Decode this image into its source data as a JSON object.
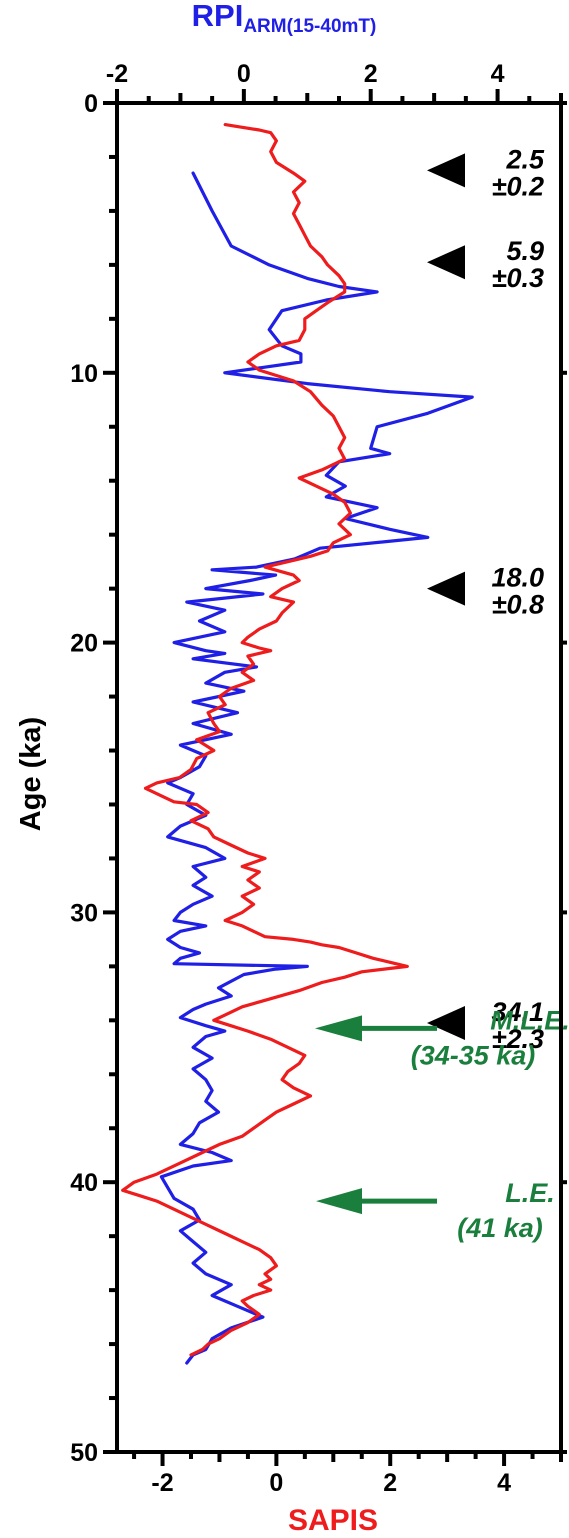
{
  "chart_data": {
    "type": "line",
    "orientation": "vertical-depth",
    "colors": {
      "rpi": "#1f1fe6",
      "sapis": "#ee1c1c",
      "event": "#1a7f3c",
      "axis": "#000000"
    },
    "top_axis": {
      "title_main": "RPI",
      "title_sub": "ARM(15-40mT)",
      "range": [
        -2,
        5
      ],
      "ticks": [
        -2,
        0,
        2,
        4
      ],
      "tick_labels": [
        "-2",
        "0",
        "2",
        "4"
      ]
    },
    "bottom_axis": {
      "title": "SAPIS",
      "range": [
        -2.8,
        5
      ],
      "ticks": [
        -2,
        0,
        2,
        4
      ],
      "tick_labels": [
        "-2",
        "0",
        "2",
        "4"
      ]
    },
    "y_axis": {
      "title": "Age (ka)",
      "range": [
        0,
        50
      ],
      "ticks": [
        0,
        10,
        20,
        30,
        40,
        50
      ],
      "tick_labels": [
        "0",
        "10",
        "20",
        "30",
        "40",
        "50"
      ]
    },
    "series": [
      {
        "name": "RPI",
        "axis": "top",
        "points": [
          [
            -0.8,
            2.6
          ],
          [
            -0.5,
            4
          ],
          [
            -0.2,
            5.3
          ],
          [
            0.4,
            6
          ],
          [
            1,
            6.5
          ],
          [
            1.5,
            6.8
          ],
          [
            2.1,
            7
          ],
          [
            1.3,
            7.3
          ],
          [
            0.6,
            7.7
          ],
          [
            0.4,
            8.4
          ],
          [
            0.6,
            9
          ],
          [
            0.9,
            9.3
          ],
          [
            0.9,
            9.6
          ],
          [
            0.3,
            9.8
          ],
          [
            -0.3,
            10
          ],
          [
            1,
            10.4
          ],
          [
            2.3,
            10.7
          ],
          [
            3.6,
            10.9
          ],
          [
            2.9,
            11.5
          ],
          [
            2.1,
            12
          ],
          [
            2,
            12.8
          ],
          [
            2.3,
            13
          ],
          [
            1.5,
            13.3
          ],
          [
            1.3,
            13.8
          ],
          [
            1.6,
            14.2
          ],
          [
            1.3,
            14.6
          ],
          [
            2.1,
            15
          ],
          [
            1.6,
            15.4
          ],
          [
            2.3,
            15.8
          ],
          [
            2.9,
            16.1
          ],
          [
            1.2,
            16.5
          ],
          [
            0.8,
            16.9
          ],
          [
            0.2,
            17.2
          ],
          [
            -0.5,
            17.3
          ],
          [
            0.5,
            17.5
          ],
          [
            0.1,
            17.7
          ],
          [
            -0.6,
            18
          ],
          [
            0.3,
            18.2
          ],
          [
            -0.9,
            18.5
          ],
          [
            -0.3,
            18.8
          ],
          [
            -0.7,
            19.2
          ],
          [
            -0.3,
            19.6
          ],
          [
            -1.1,
            20
          ],
          [
            -0.6,
            20.3
          ],
          [
            -0.3,
            20.4
          ],
          [
            -0.8,
            20.6
          ],
          [
            0.2,
            20.9
          ],
          [
            -0.3,
            21.1
          ],
          [
            -0.6,
            21.5
          ],
          [
            0,
            21.8
          ],
          [
            -0.8,
            22.2
          ],
          [
            -0.1,
            22.6
          ],
          [
            -0.8,
            23
          ],
          [
            -0.2,
            23.4
          ],
          [
            -1,
            23.8
          ],
          [
            -0.6,
            24.2
          ],
          [
            -0.7,
            24.6
          ],
          [
            -1,
            25
          ],
          [
            -1.2,
            25.2
          ],
          [
            -0.8,
            25.6
          ],
          [
            -0.9,
            26
          ],
          [
            -0.6,
            26.4
          ],
          [
            -1,
            26.8
          ],
          [
            -1.2,
            27.2
          ],
          [
            -0.6,
            27.6
          ],
          [
            -0.3,
            28
          ],
          [
            -0.8,
            28.3
          ],
          [
            -0.6,
            28.7
          ],
          [
            -0.8,
            29
          ],
          [
            -0.5,
            29.4
          ],
          [
            -0.8,
            29.7
          ],
          [
            -1,
            30
          ],
          [
            -1.1,
            30.3
          ],
          [
            -0.6,
            30.5
          ],
          [
            -1,
            30.7
          ],
          [
            -1.2,
            31
          ],
          [
            -1,
            31.3
          ],
          [
            -0.7,
            31.5
          ],
          [
            -1,
            31.7
          ],
          [
            -1.1,
            31.9
          ],
          [
            1,
            32
          ],
          [
            0.5,
            32.1
          ],
          [
            0,
            32.3
          ],
          [
            -0.4,
            32.8
          ],
          [
            -0.2,
            33.1
          ],
          [
            -0.6,
            33.4
          ],
          [
            -0.8,
            33.6
          ],
          [
            -1,
            33.9
          ],
          [
            -0.6,
            34.2
          ],
          [
            -0.3,
            34.4
          ],
          [
            -0.6,
            34.6
          ],
          [
            -0.8,
            35
          ],
          [
            -0.5,
            35.4
          ],
          [
            -0.8,
            35.8
          ],
          [
            -0.6,
            36.2
          ],
          [
            -0.5,
            36.6
          ],
          [
            -0.6,
            37
          ],
          [
            -0.4,
            37.4
          ],
          [
            -0.7,
            37.8
          ],
          [
            -0.8,
            38.2
          ],
          [
            -1,
            38.6
          ],
          [
            -0.5,
            38.9
          ],
          [
            -0.2,
            39.2
          ],
          [
            -0.8,
            39.4
          ],
          [
            -1.3,
            39.8
          ],
          [
            -1.2,
            40.2
          ],
          [
            -1.1,
            40.6
          ],
          [
            -0.8,
            41
          ],
          [
            -0.7,
            41.4
          ],
          [
            -1,
            41.8
          ],
          [
            -0.8,
            42.2
          ],
          [
            -0.6,
            42.6
          ],
          [
            -0.8,
            43
          ],
          [
            -0.6,
            43.4
          ],
          [
            -0.2,
            43.8
          ],
          [
            -0.5,
            44.2
          ],
          [
            -0.1,
            44.6
          ],
          [
            0.3,
            45
          ],
          [
            -0.2,
            45.4
          ],
          [
            -0.5,
            45.8
          ],
          [
            -0.6,
            46.2
          ],
          [
            -0.8,
            46.4
          ],
          [
            -0.9,
            46.7
          ]
        ]
      },
      {
        "name": "SAPIS",
        "axis": "bottom",
        "points": [
          [
            -0.9,
            0.8
          ],
          [
            -0.6,
            0.9
          ],
          [
            -0.3,
            1
          ],
          [
            -0.1,
            1.1
          ],
          [
            0,
            1.4
          ],
          [
            -0.1,
            1.8
          ],
          [
            0,
            2.2
          ],
          [
            0.3,
            2.6
          ],
          [
            0.5,
            2.9
          ],
          [
            0.3,
            3.3
          ],
          [
            0.4,
            3.7
          ],
          [
            0.3,
            4.1
          ],
          [
            0.4,
            4.5
          ],
          [
            0.5,
            4.9
          ],
          [
            0.6,
            5.3
          ],
          [
            0.8,
            5.7
          ],
          [
            0.9,
            6
          ],
          [
            1.1,
            6.4
          ],
          [
            1.2,
            6.7
          ],
          [
            1.2,
            7
          ],
          [
            0.9,
            7.4
          ],
          [
            0.7,
            7.7
          ],
          [
            0.5,
            8
          ],
          [
            0.5,
            8.4
          ],
          [
            0.4,
            8.8
          ],
          [
            0,
            9
          ],
          [
            -0.3,
            9.3
          ],
          [
            -0.5,
            9.6
          ],
          [
            -0.3,
            9.9
          ],
          [
            0,
            10.1
          ],
          [
            0.3,
            10.3
          ],
          [
            0.6,
            10.7
          ],
          [
            0.8,
            11.2
          ],
          [
            1,
            11.6
          ],
          [
            1.1,
            12
          ],
          [
            1.2,
            12.4
          ],
          [
            1.1,
            12.8
          ],
          [
            1.2,
            13.2
          ],
          [
            0.8,
            13.6
          ],
          [
            0.4,
            13.9
          ],
          [
            0.7,
            14.2
          ],
          [
            1,
            14.5
          ],
          [
            1.2,
            14.8
          ],
          [
            1.3,
            15.2
          ],
          [
            1.1,
            15.6
          ],
          [
            1.3,
            16
          ],
          [
            1,
            16.3
          ],
          [
            0.9,
            16.6
          ],
          [
            0.6,
            16.8
          ],
          [
            0.2,
            17
          ],
          [
            -0.2,
            17.2
          ],
          [
            0.3,
            17.5
          ],
          [
            0.4,
            17.7
          ],
          [
            0.1,
            18
          ],
          [
            -0.1,
            18.3
          ],
          [
            0.3,
            18.5
          ],
          [
            0.1,
            18.9
          ],
          [
            0,
            19.2
          ],
          [
            -0.3,
            19.5
          ],
          [
            -0.5,
            19.8
          ],
          [
            -0.6,
            20
          ],
          [
            -0.3,
            20.2
          ],
          [
            -0.1,
            20.3
          ],
          [
            -0.5,
            20.5
          ],
          [
            -0.4,
            20.8
          ],
          [
            -0.6,
            21.1
          ],
          [
            -0.4,
            21.4
          ],
          [
            -0.8,
            21.7
          ],
          [
            -1,
            22
          ],
          [
            -0.9,
            22.3
          ],
          [
            -1.2,
            22.6
          ],
          [
            -1.1,
            23
          ],
          [
            -1,
            23.3
          ],
          [
            -1.4,
            23.6
          ],
          [
            -1.1,
            24
          ],
          [
            -1.4,
            24.3
          ],
          [
            -1.5,
            24.7
          ],
          [
            -1.7,
            25
          ],
          [
            -2.1,
            25.2
          ],
          [
            -2.3,
            25.4
          ],
          [
            -2.1,
            25.6
          ],
          [
            -1.8,
            25.9
          ],
          [
            -1.4,
            26
          ],
          [
            -1.2,
            26.3
          ],
          [
            -1.5,
            26.6
          ],
          [
            -1.2,
            26.9
          ],
          [
            -1.1,
            27.2
          ],
          [
            -0.8,
            27.5
          ],
          [
            -0.5,
            27.8
          ],
          [
            -0.2,
            28
          ],
          [
            -0.6,
            28.3
          ],
          [
            -0.3,
            28.5
          ],
          [
            -0.5,
            28.8
          ],
          [
            -0.3,
            29.1
          ],
          [
            -0.6,
            29.4
          ],
          [
            -0.4,
            29.7
          ],
          [
            -0.6,
            30
          ],
          [
            -0.9,
            30.3
          ],
          [
            -0.6,
            30.5
          ],
          [
            -0.4,
            30.7
          ],
          [
            -0.2,
            30.9
          ],
          [
            0.3,
            31
          ],
          [
            0.6,
            31.1
          ],
          [
            0.8,
            31.2
          ],
          [
            1.1,
            31.3
          ],
          [
            1.4,
            31.5
          ],
          [
            1.7,
            31.7
          ],
          [
            2.3,
            32
          ],
          [
            1.5,
            32.2
          ],
          [
            1.2,
            32.4
          ],
          [
            0.8,
            32.6
          ],
          [
            0.4,
            32.9
          ],
          [
            -0.1,
            33.2
          ],
          [
            -0.6,
            33.5
          ],
          [
            -0.9,
            33.8
          ],
          [
            -1.1,
            34
          ],
          [
            -0.8,
            34.2
          ],
          [
            -0.5,
            34.4
          ],
          [
            -0.1,
            34.7
          ],
          [
            0.2,
            35
          ],
          [
            0.5,
            35.3
          ],
          [
            0.4,
            35.6
          ],
          [
            0.2,
            35.9
          ],
          [
            0.1,
            36.2
          ],
          [
            0.3,
            36.5
          ],
          [
            0.6,
            36.8
          ],
          [
            0.3,
            37.1
          ],
          [
            0,
            37.4
          ],
          [
            -0.2,
            37.7
          ],
          [
            -0.4,
            38
          ],
          [
            -0.6,
            38.3
          ],
          [
            -1,
            38.6
          ],
          [
            -1.3,
            38.9
          ],
          [
            -1.7,
            39.3
          ],
          [
            -2.1,
            39.7
          ],
          [
            -2.5,
            40
          ],
          [
            -2.7,
            40.3
          ],
          [
            -2.4,
            40.5
          ],
          [
            -2.1,
            40.7
          ],
          [
            -1.8,
            41
          ],
          [
            -1.5,
            41.3
          ],
          [
            -1.2,
            41.6
          ],
          [
            -0.9,
            41.9
          ],
          [
            -0.6,
            42.2
          ],
          [
            -0.3,
            42.5
          ],
          [
            -0.1,
            42.8
          ],
          [
            0,
            43.1
          ],
          [
            -0.2,
            43.4
          ],
          [
            -0.1,
            43.6
          ],
          [
            -0.3,
            43.8
          ],
          [
            -0.1,
            44
          ],
          [
            -0.4,
            44.2
          ],
          [
            -0.6,
            44.4
          ],
          [
            -0.5,
            44.6
          ],
          [
            -0.3,
            44.9
          ],
          [
            -0.5,
            45.2
          ],
          [
            -0.8,
            45.5
          ],
          [
            -1,
            45.8
          ],
          [
            -1.2,
            46
          ],
          [
            -1.3,
            46.2
          ],
          [
            -1.5,
            46.4
          ]
        ]
      }
    ],
    "markers": [
      {
        "age": 2.5,
        "label": "2.5",
        "uncertainty": "±0.2"
      },
      {
        "age": 5.9,
        "label": "5.9",
        "uncertainty": "±0.3"
      },
      {
        "age": 18.0,
        "label": "18.0",
        "uncertainty": "±0.8"
      },
      {
        "age": 34.1,
        "label": "34.1",
        "uncertainty": "±2.3"
      }
    ],
    "events": [
      {
        "age": 34.3,
        "name": "M.L.E.",
        "range_label": "(34-35 ka)"
      },
      {
        "age": 40.7,
        "name": "L.E.",
        "range_label": "(41 ka)"
      }
    ]
  }
}
